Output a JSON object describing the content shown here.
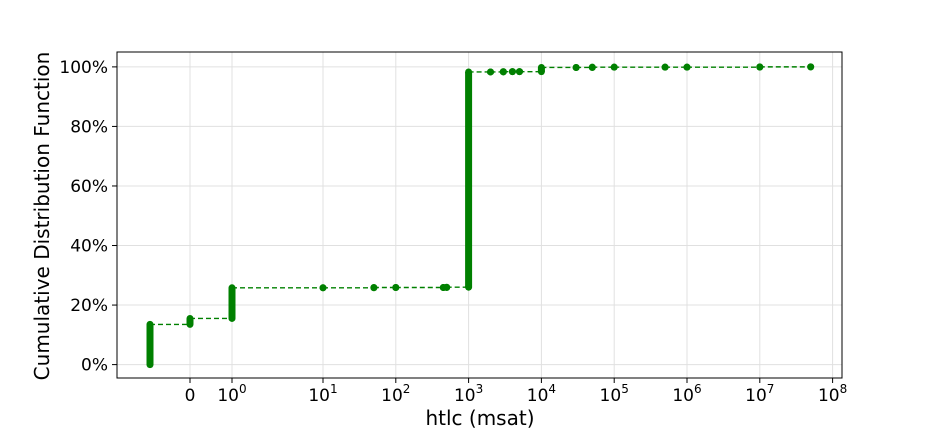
{
  "chart_data": {
    "type": "line",
    "title": "",
    "xlabel": "htlc (msat)",
    "ylabel": "Cumulative Distribution Function",
    "x_scale": "symlog",
    "x_ticks": [
      {
        "value": 0,
        "label": "0"
      },
      {
        "value": 1,
        "base": "10",
        "exp": "0"
      },
      {
        "value": 10,
        "base": "10",
        "exp": "1"
      },
      {
        "value": 100,
        "base": "10",
        "exp": "2"
      },
      {
        "value": 1000,
        "base": "10",
        "exp": "3"
      },
      {
        "value": 10000,
        "base": "10",
        "exp": "4"
      },
      {
        "value": 100000,
        "base": "10",
        "exp": "5"
      },
      {
        "value": 1000000,
        "base": "10",
        "exp": "6"
      },
      {
        "value": 10000000,
        "base": "10",
        "exp": "7"
      },
      {
        "value": 100000000,
        "base": "10",
        "exp": "8"
      }
    ],
    "y_ticks": [
      {
        "value": 0,
        "label": "0%"
      },
      {
        "value": 0.2,
        "label": "20%"
      },
      {
        "value": 0.4,
        "label": "40%"
      },
      {
        "value": 0.6,
        "label": "60%"
      },
      {
        "value": 0.8,
        "label": "80%"
      },
      {
        "value": 1.0,
        "label": "100%"
      }
    ],
    "ylim": [
      -0.045,
      1.05
    ],
    "grid": true,
    "color": "#008000",
    "line_style": "dashed",
    "marker": "circle",
    "series": [
      {
        "x_symlog_position": -2.23,
        "x": null,
        "y": [
          0.0,
          0.135
        ]
      },
      {
        "points": [
          {
            "x": 0,
            "y_from": 0.135,
            "y_to": 0.155
          },
          {
            "x": 1,
            "y_from": 0.155,
            "y_to": 0.258
          },
          {
            "x": 10,
            "y_from": 0.258,
            "y_to": 0.258
          },
          {
            "x": 50,
            "y_from": 0.258,
            "y_to": 0.259
          },
          {
            "x": 100,
            "y_from": 0.259,
            "y_to": 0.259
          },
          {
            "x": 450,
            "y_from": 0.259,
            "y_to": 0.259
          },
          {
            "x": 500,
            "y_from": 0.259,
            "y_to": 0.26
          },
          {
            "x": 1000,
            "y_from": 0.26,
            "y_to": 0.983
          },
          {
            "x": 2000,
            "y_from": 0.983,
            "y_to": 0.983
          },
          {
            "x": 3000,
            "y_from": 0.983,
            "y_to": 0.984
          },
          {
            "x": 4000,
            "y_from": 0.984,
            "y_to": 0.984
          },
          {
            "x": 5000,
            "y_from": 0.984,
            "y_to": 0.984
          },
          {
            "x": 10000,
            "y_from": 0.984,
            "y_to": 0.998
          },
          {
            "x": 30000,
            "y_from": 0.998,
            "y_to": 0.998
          },
          {
            "x": 50000,
            "y_from": 0.998,
            "y_to": 0.999
          },
          {
            "x": 100000,
            "y_from": 0.999,
            "y_to": 0.999
          },
          {
            "x": 500000,
            "y_from": 0.999,
            "y_to": 0.999
          },
          {
            "x": 1000000,
            "y_from": 0.999,
            "y_to": 0.999
          },
          {
            "x": 10000000,
            "y_from": 0.999,
            "y_to": 1.0
          },
          {
            "x": 50000000,
            "y_from": 1.0,
            "y_to": 1.0
          }
        ]
      }
    ]
  }
}
